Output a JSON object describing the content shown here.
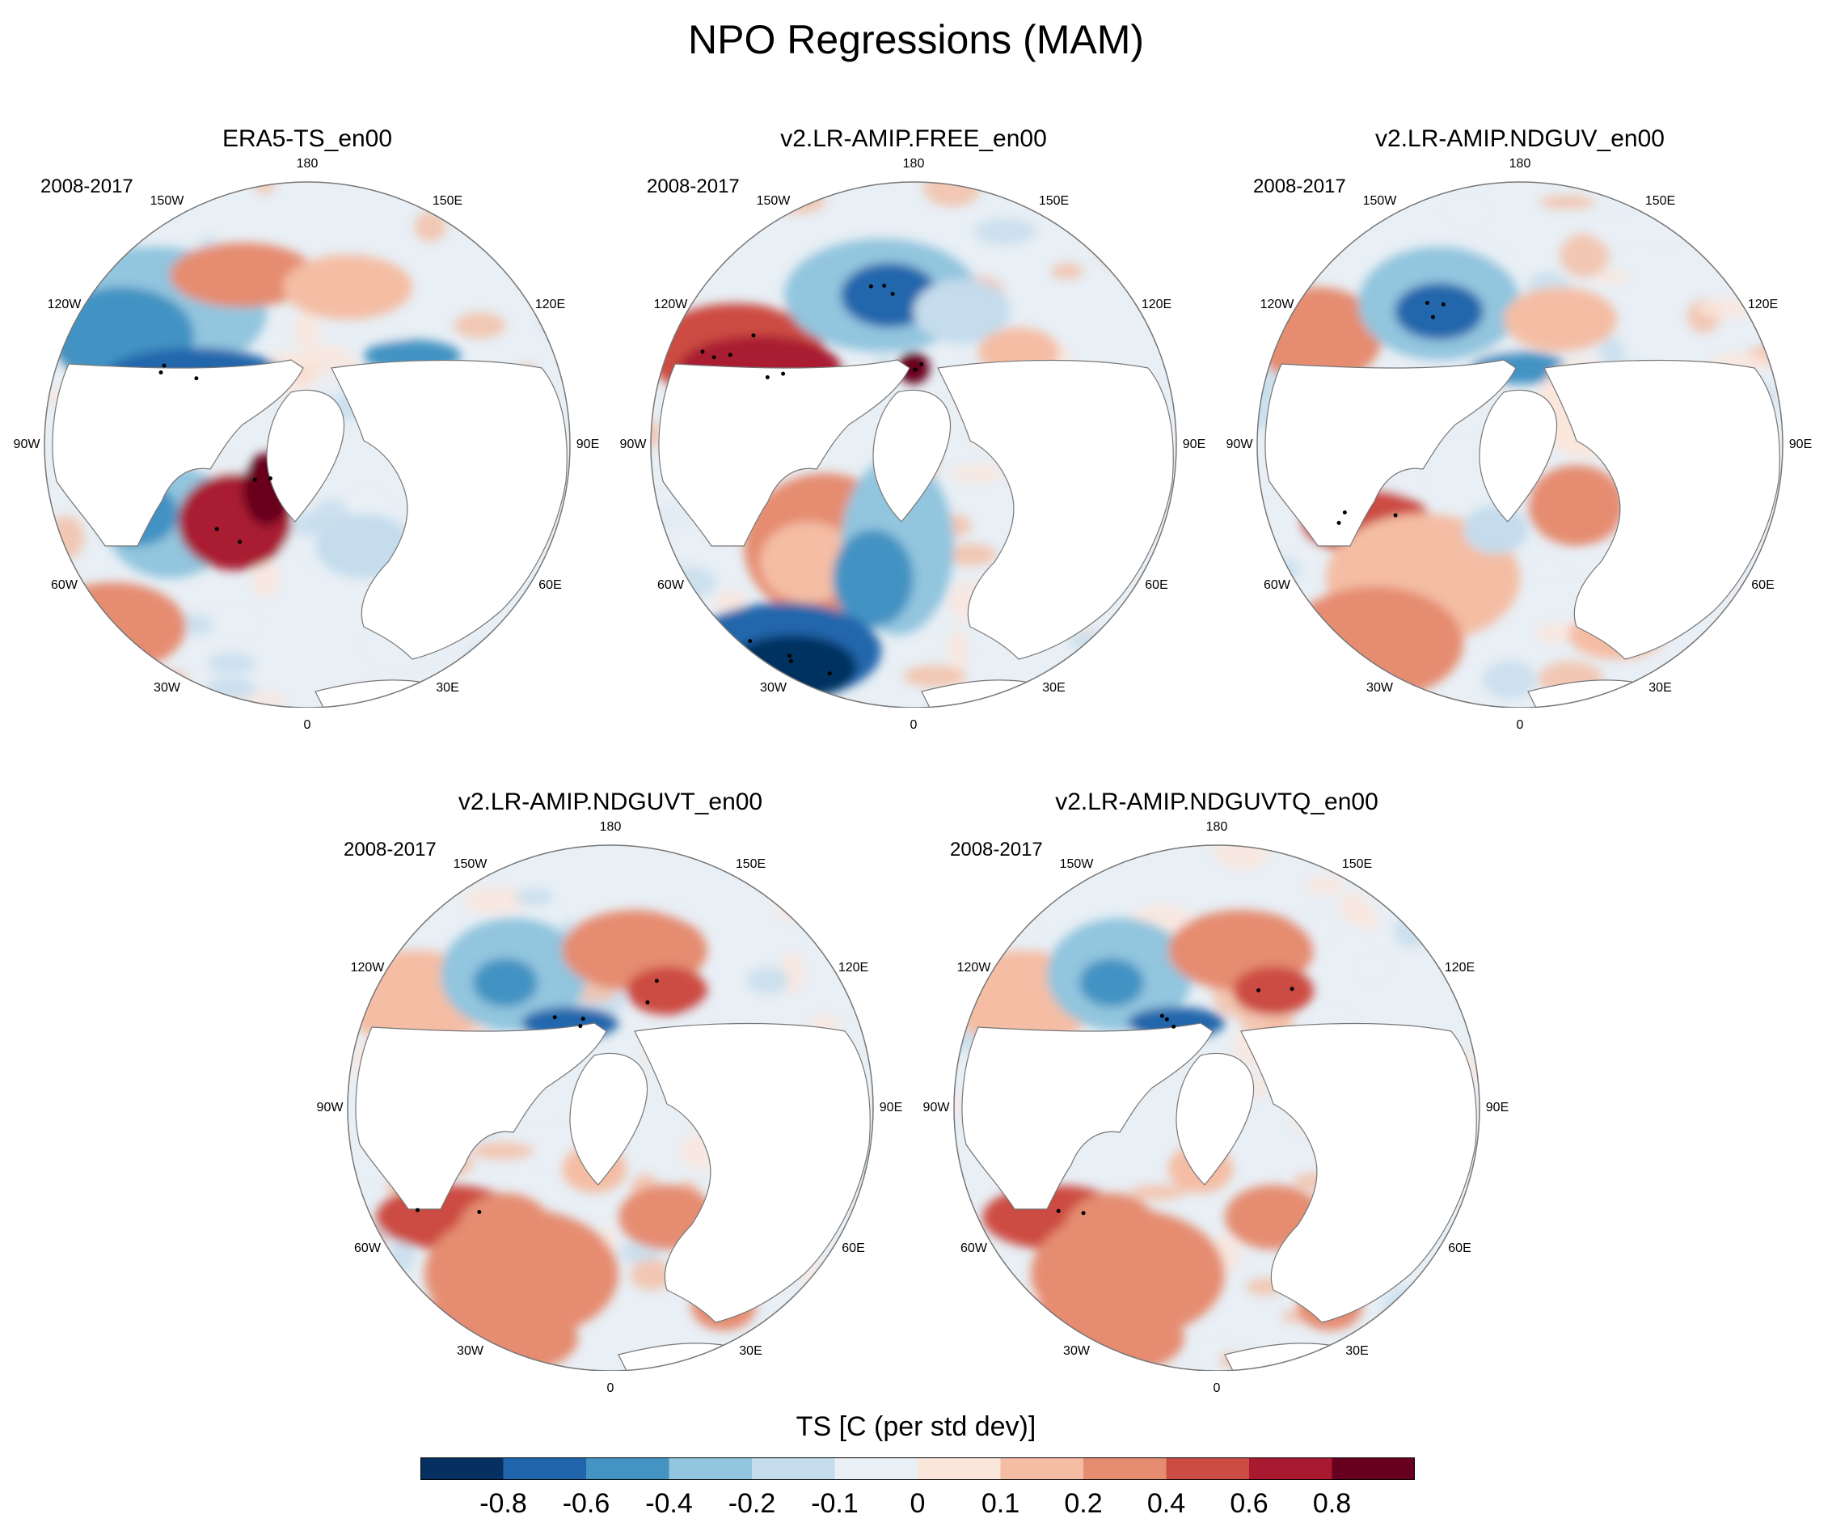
{
  "title": "NPO Regressions (MAM)",
  "panels": [
    {
      "title": "ERA5-TS_en00",
      "period": "2008-2017",
      "pattern": 0
    },
    {
      "title": "v2.LR-AMIP.FREE_en00",
      "period": "2008-2017",
      "pattern": 1
    },
    {
      "title": "v2.LR-AMIP.NDGUV_en00",
      "period": "2008-2017",
      "pattern": 2
    },
    {
      "title": "v2.LR-AMIP.NDGUVT_en00",
      "period": "2008-2017",
      "pattern": 3
    },
    {
      "title": "v2.LR-AMIP.NDGUVTQ_en00",
      "period": "2008-2017",
      "pattern": 3
    }
  ],
  "lon_labels": [
    "180",
    "150E",
    "120E",
    "90E",
    "60E",
    "30E",
    "0",
    "30W",
    "60W",
    "90W",
    "120W",
    "150W"
  ],
  "colorbar": {
    "title": "TS [C (per std dev)]",
    "colors": [
      "#053061",
      "#2166ac",
      "#4393c3",
      "#92c5de",
      "#c4dcec",
      "#e8eff5",
      "#fbe6dc",
      "#f4bda4",
      "#e58c71",
      "#cc4c43",
      "#a91a30",
      "#67001f"
    ],
    "ticks": [
      "-0.8",
      "-0.6",
      "-0.4",
      "-0.2",
      "-0.1",
      "0",
      "0.1",
      "0.2",
      "0.4",
      "0.6",
      "0.8"
    ]
  },
  "chart_data": {
    "type": "heatmap",
    "title": "NPO Regressions (MAM)",
    "variable": "TS [C (per std dev)]",
    "projection": "north polar stereographic",
    "period": "2008-2017",
    "levels": [
      -0.8,
      -0.6,
      -0.4,
      -0.2,
      -0.1,
      0,
      0.1,
      0.2,
      0.4,
      0.6,
      0.8
    ],
    "panels": [
      "ERA5-TS_en00",
      "v2.LR-AMIP.FREE_en00",
      "v2.LR-AMIP.NDGUV_en00",
      "v2.LR-AMIP.NDGUVT_en00",
      "v2.LR-AMIP.NDGUVTQ_en00"
    ]
  }
}
